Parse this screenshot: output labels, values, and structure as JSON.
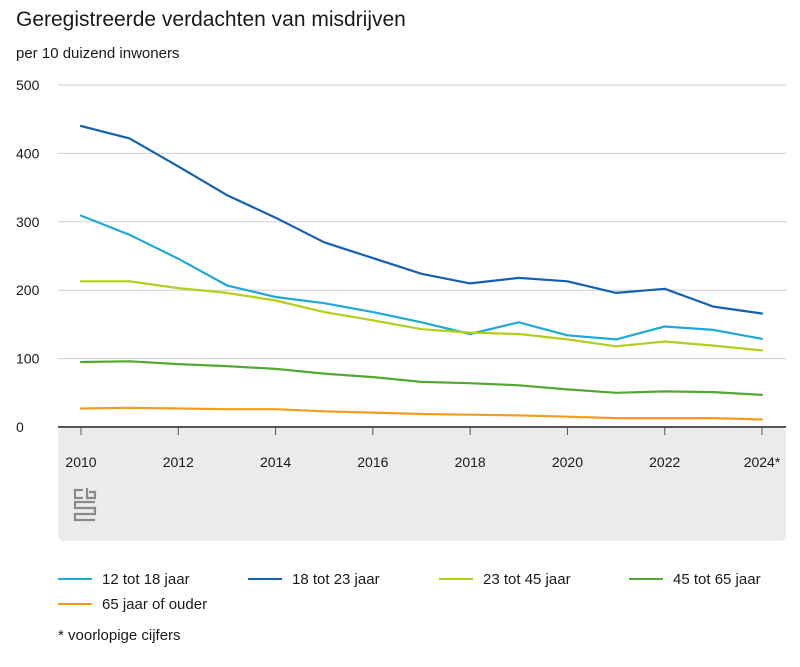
{
  "header": {
    "title": "Geregistreerde verdachten van misdrijven",
    "subtitle": "per 10 duizend inwoners"
  },
  "logo": {
    "name": "cbs-logo",
    "text": "cbs"
  },
  "footnote": "* voorlopige cijfers",
  "colors": {
    "grid": "#cfcfcf",
    "axis": "#555555",
    "panel": "#ebebeb"
  },
  "chart_data": {
    "type": "line",
    "title": "Geregistreerde verdachten van misdrijven",
    "subtitle": "per 10 duizend inwoners",
    "xlabel": "",
    "ylabel": "",
    "x": [
      2010,
      2011,
      2012,
      2013,
      2014,
      2015,
      2016,
      2017,
      2018,
      2019,
      2020,
      2021,
      2022,
      2023,
      2024
    ],
    "xtick_values": [
      2010,
      2012,
      2014,
      2016,
      2018,
      2020,
      2022,
      2024
    ],
    "xtick_labels": [
      "2010",
      "2012",
      "2014",
      "2016",
      "2018",
      "2020",
      "2022",
      "2024*"
    ],
    "ylim": [
      0,
      500
    ],
    "yticks": [
      0,
      100,
      200,
      300,
      400,
      500
    ],
    "grid": true,
    "legend_position": "bottom",
    "series": [
      {
        "name": "12 tot 18 jaar",
        "color": "#1fa9d6",
        "values": [
          309,
          281,
          246,
          207,
          190,
          181,
          168,
          153,
          136,
          153,
          134,
          128,
          147,
          142,
          129
        ]
      },
      {
        "name": "18 tot 23 jaar",
        "color": "#1560b0",
        "values": [
          440,
          422,
          381,
          339,
          306,
          270,
          247,
          224,
          210,
          218,
          213,
          196,
          202,
          176,
          166
        ]
      },
      {
        "name": "23 tot 45 jaar",
        "color": "#b2cf1c",
        "values": [
          213,
          213,
          203,
          196,
          185,
          168,
          156,
          143,
          138,
          136,
          128,
          118,
          125,
          119,
          112
        ]
      },
      {
        "name": "45 tot 65 jaar",
        "color": "#52a833",
        "values": [
          95,
          96,
          92,
          89,
          85,
          78,
          73,
          66,
          64,
          61,
          55,
          50,
          52,
          51,
          47
        ]
      },
      {
        "name": "65 jaar of ouder",
        "color": "#f39c1f",
        "values": [
          27,
          28,
          27,
          26,
          26,
          23,
          21,
          19,
          18,
          17,
          15,
          13,
          13,
          13,
          11
        ]
      }
    ]
  }
}
